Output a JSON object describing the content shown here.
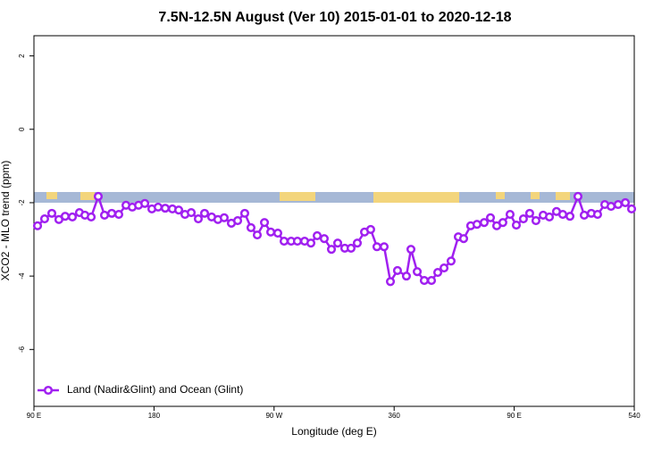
{
  "chart_data": {
    "type": "line",
    "title": "7.5N-12.5N August (Ver 10)   2015-01-01 to 2020-12-18",
    "xlabel": "Longitude (deg E)",
    "ylabel": "XCO2 - MLO trend (ppm)",
    "xlim": [
      90,
      540
    ],
    "ylim": [
      -7.55,
      2.55
    ],
    "xticks": [
      {
        "value": 90,
        "label": "90 E"
      },
      180,
      {
        "value": 270,
        "label": "90 W"
      },
      360,
      {
        "value": 450,
        "label": "90 E"
      },
      540
    ],
    "yticks": [
      2,
      0,
      -2,
      -4,
      -6
    ],
    "legend": "bottom-left",
    "x": [
      92.7,
      98.0,
      103.4,
      108.7,
      113.4,
      118.8,
      124.1,
      128.2,
      132.9,
      138.2,
      142.9,
      148.3,
      153.6,
      159.0,
      163.7,
      168.4,
      173.1,
      178.4,
      183.1,
      188.4,
      193.8,
      198.5,
      203.2,
      207.9,
      213.2,
      217.9,
      223.2,
      227.9,
      232.6,
      238.0,
      242.7,
      248.0,
      252.7,
      257.4,
      262.8,
      267.5,
      272.8,
      277.5,
      282.8,
      287.5,
      292.9,
      297.6,
      302.3,
      307.6,
      313.0,
      317.7,
      323.0,
      327.7,
      332.4,
      337.8,
      342.4,
      347.1,
      352.5,
      357.2,
      362.5,
      369.2,
      372.6,
      377.3,
      382.6,
      388.0,
      392.7,
      397.4,
      402.7,
      408.1,
      412.1,
      417.4,
      422.1,
      427.5,
      432.2,
      436.9,
      441.5,
      446.9,
      451.6,
      456.9,
      461.6,
      466.3,
      471.7,
      476.4,
      481.7,
      486.4,
      491.8,
      497.8,
      502.5,
      507.8,
      512.5,
      517.9,
      522.6,
      527.9,
      533.3,
      538.0
    ],
    "series": [
      {
        "name": "Land (Nadir&Glint) and Ocean (Glint)",
        "color": "#a020f0",
        "values": [
          -2.63,
          -2.44,
          -2.29,
          -2.46,
          -2.37,
          -2.39,
          -2.27,
          -2.34,
          -2.39,
          -1.83,
          -2.34,
          -2.29,
          -2.32,
          -2.07,
          -2.12,
          -2.07,
          -2.02,
          -2.17,
          -2.12,
          -2.15,
          -2.17,
          -2.2,
          -2.32,
          -2.27,
          -2.44,
          -2.29,
          -2.39,
          -2.46,
          -2.41,
          -2.56,
          -2.49,
          -2.29,
          -2.68,
          -2.88,
          -2.54,
          -2.8,
          -2.83,
          -3.05,
          -3.05,
          -3.05,
          -3.05,
          -3.1,
          -2.9,
          -2.98,
          -3.27,
          -3.1,
          -3.24,
          -3.24,
          -3.1,
          -2.8,
          -2.73,
          -3.2,
          -3.2,
          -4.15,
          -3.85,
          -4.0,
          -3.27,
          -3.88,
          -4.12,
          -4.12,
          -3.9,
          -3.78,
          -3.59,
          -2.93,
          -2.98,
          -2.63,
          -2.59,
          -2.54,
          -2.41,
          -2.63,
          -2.54,
          -2.32,
          -2.61,
          -2.44,
          -2.29,
          -2.49,
          -2.34,
          -2.39,
          -2.24,
          -2.32,
          -2.37,
          -1.83,
          -2.34,
          -2.29,
          -2.32,
          -2.05,
          -2.1,
          -2.05,
          -2.0,
          -2.17
        ]
      }
    ]
  }
}
